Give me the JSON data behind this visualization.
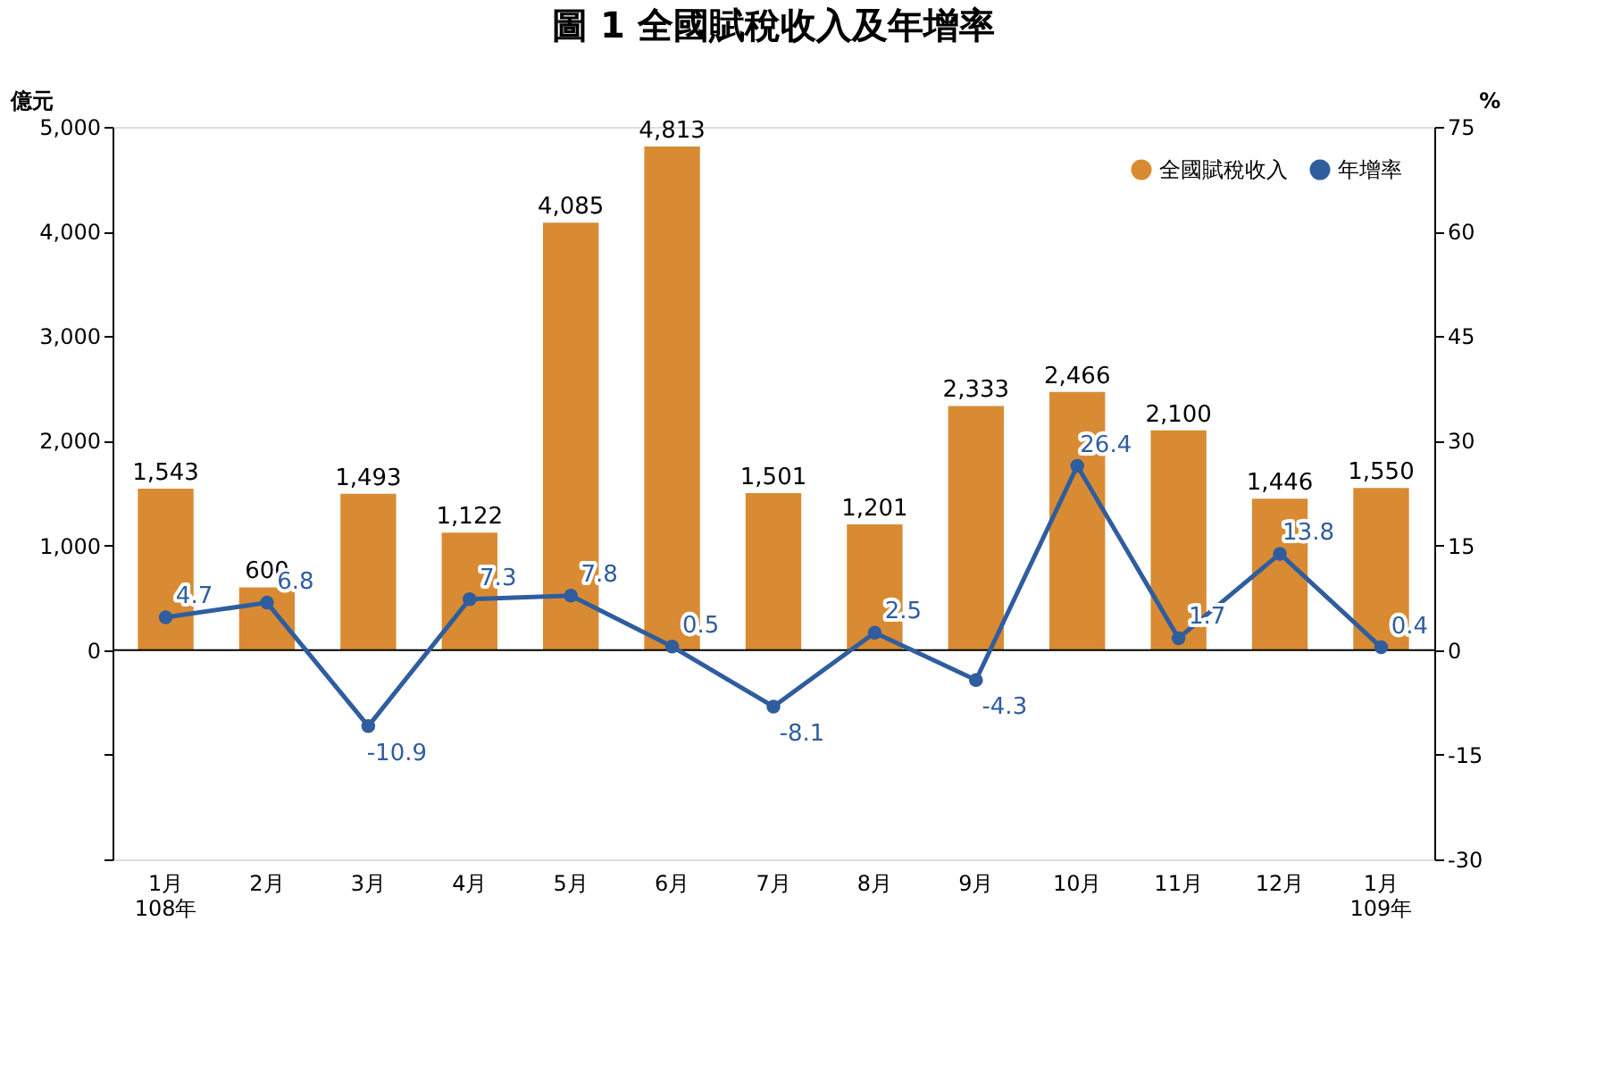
{
  "chart_data": {
    "type": "bar",
    "title": "圖 1  全國賦稅收入及年增率",
    "ylabel": "億元",
    "y2label": "%",
    "categories": [
      "1月\n108年",
      "2月",
      "3月",
      "4月",
      "5月",
      "6月",
      "7月",
      "8月",
      "9月",
      "10月",
      "11月",
      "12月",
      "1月\n109年"
    ],
    "series": [
      {
        "name": "全國賦稅收入",
        "color": "#d98b33",
        "values": [
          1543,
          600,
          1493,
          1122,
          4085,
          4813,
          1501,
          1201,
          2333,
          2466,
          2100,
          1446,
          1550
        ],
        "value_labels": [
          "1,543",
          "600",
          "1,493",
          "1,122",
          "4,085",
          "4,813",
          "1,501",
          "1,201",
          "2,333",
          "2,466",
          "2,100",
          "1,446",
          "1,550"
        ]
      },
      {
        "name": "年增率",
        "type": "line",
        "axis": "y2",
        "color": "#2f5d9e",
        "marker": "circle",
        "values": [
          4.7,
          6.8,
          -10.9,
          7.3,
          7.8,
          0.5,
          -8.1,
          2.5,
          -4.3,
          26.4,
          1.7,
          13.8,
          0.4
        ]
      }
    ],
    "ylim": [
      -2000,
      5000
    ],
    "yticks": [
      {
        "value": -2000,
        "label": null
      },
      {
        "value": -1000,
        "label": null
      },
      0,
      {
        "value": 1000,
        "label": "1,000"
      },
      {
        "value": 2000,
        "label": "2,000"
      },
      {
        "value": 3000,
        "label": "3,000"
      },
      {
        "value": 4000,
        "label": "4,000"
      },
      {
        "value": 5000,
        "label": "5,000"
      }
    ],
    "y2lim": [
      -30,
      75
    ],
    "y2ticks": [
      -30,
      -15,
      0,
      15,
      30,
      45,
      60,
      75
    ],
    "ref_lines": [
      {
        "axis": "y",
        "value": 0,
        "color": "#000000"
      }
    ],
    "data_labels": true,
    "grid": false,
    "legend": "top right"
  }
}
